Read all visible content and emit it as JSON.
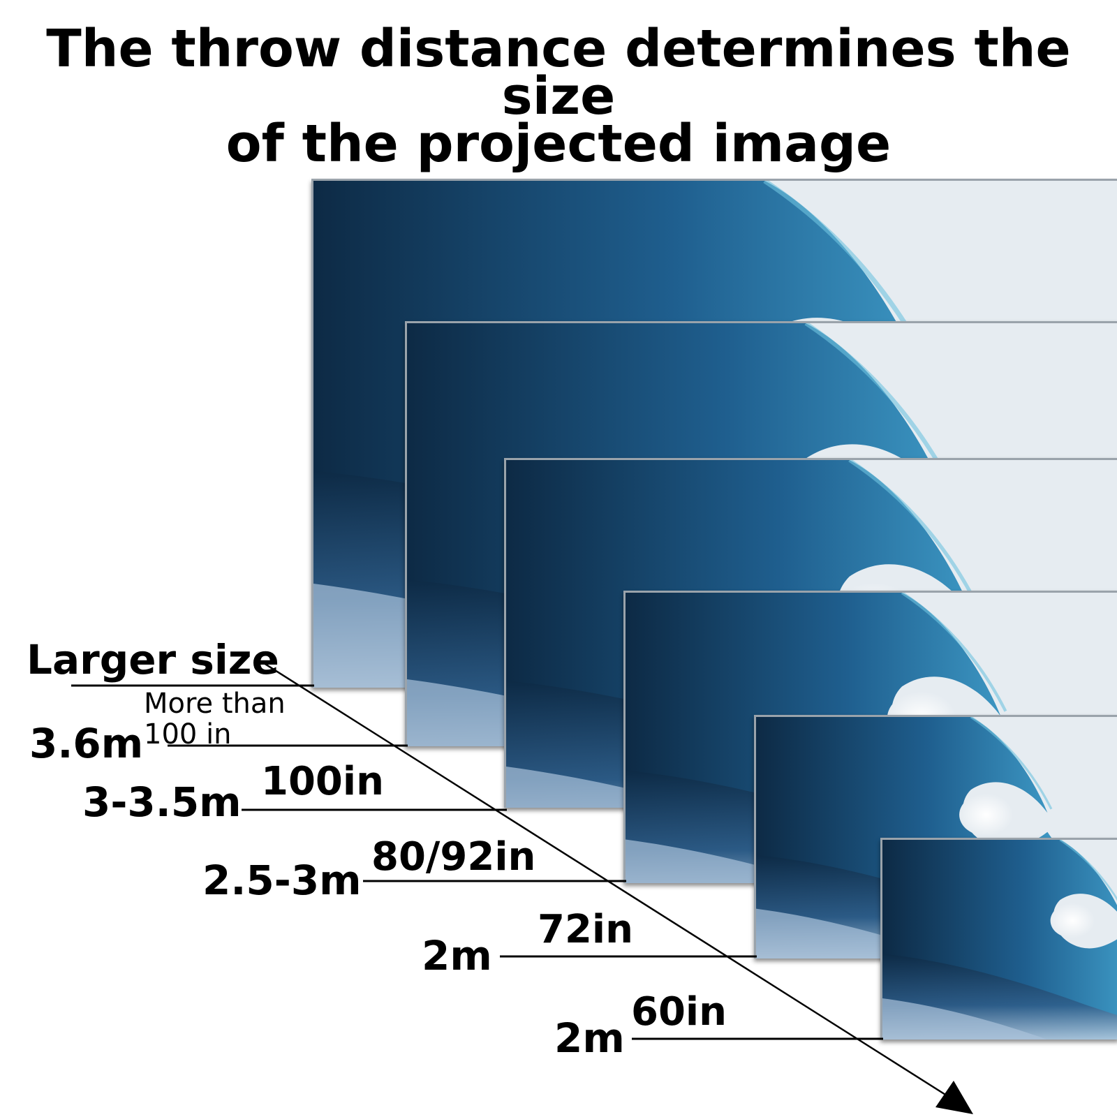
{
  "title": {
    "line1": "The throw distance determines the size",
    "line2": "of the projected image"
  },
  "larger_label": "Larger size",
  "rows": [
    {
      "distance": "3.6m",
      "size_line1": "More than",
      "size_line2": "100 in"
    },
    {
      "distance": "3-3.5m",
      "size": "100in"
    },
    {
      "distance": "2.5-3m",
      "size": "80/92in"
    },
    {
      "distance": "2m",
      "size": "72in"
    },
    {
      "distance": "2m",
      "size": "60in"
    }
  ],
  "colors": {
    "wave_dark": "#0d2a45",
    "wave_mid": "#1f5f8f",
    "wave_light": "#3f9cc8",
    "sky": "#e6ecf1",
    "line": "#000000"
  }
}
